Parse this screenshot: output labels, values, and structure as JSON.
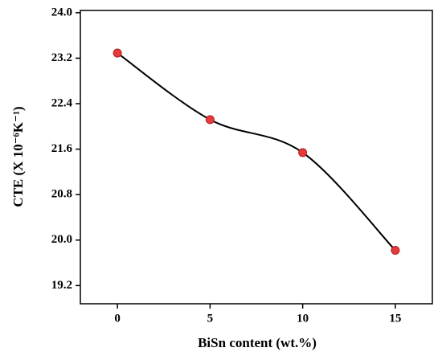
{
  "chart_data": {
    "type": "line",
    "x_label": "BiSn content (wt.%)",
    "y_label": "CTE (X 10⁻⁶K⁻¹)",
    "x": [
      0,
      5,
      10,
      15
    ],
    "series": [
      {
        "values": [
          23.29,
          22.12,
          21.54,
          19.82
        ],
        "color": "#e83a3a",
        "line_color": "#000000"
      }
    ],
    "xlim": [
      -2,
      17
    ],
    "xticks": [
      0,
      5,
      10,
      15
    ],
    "ylim": [
      18.88,
      24.04
    ],
    "yticks": [
      {
        "value": 19.2,
        "label": "19.2"
      },
      {
        "value": 20.0,
        "label": "20.0"
      },
      {
        "value": 20.8,
        "label": "20.8"
      },
      {
        "value": 21.6,
        "label": "21.6"
      },
      {
        "value": 22.4,
        "label": "22.4"
      },
      {
        "value": 23.2,
        "label": "23.2"
      },
      {
        "value": 24.0,
        "label": "24.0"
      }
    ],
    "smooth": true
  }
}
